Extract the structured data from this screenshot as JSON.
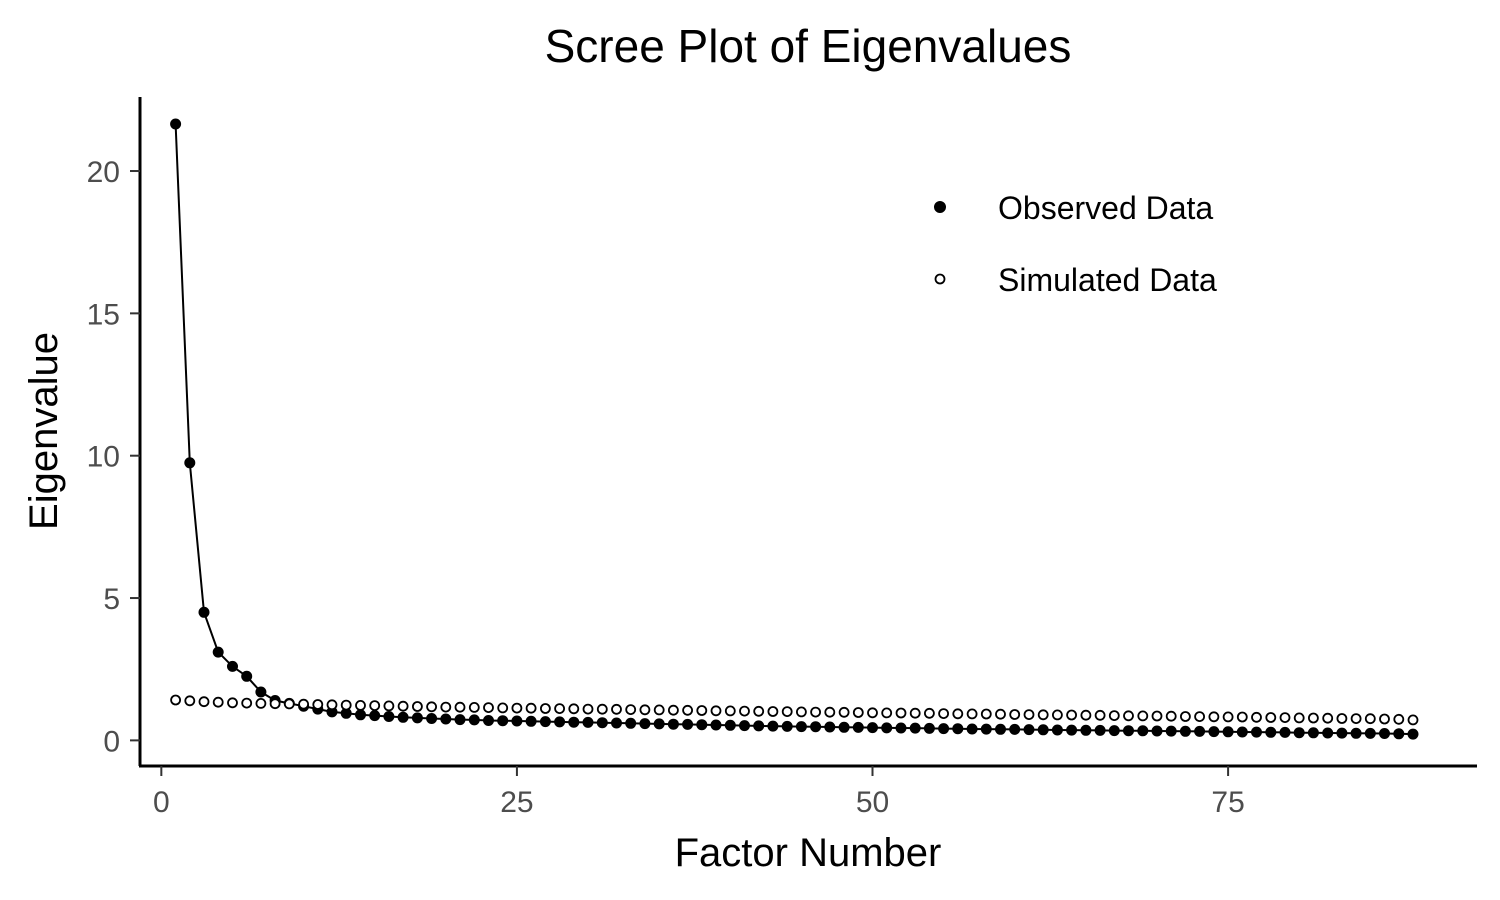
{
  "chart_data": {
    "type": "line",
    "title": "Scree Plot of Eigenvalues",
    "xlabel": "Factor Number",
    "ylabel": "Eigenvalue",
    "xlim": [
      -1.5,
      92.5
    ],
    "ylim": [
      -0.9,
      22.6
    ],
    "x_ticks": [
      0,
      25,
      50,
      75
    ],
    "y_ticks": [
      0,
      5,
      10,
      15,
      20
    ],
    "grid": false,
    "legend_position": "top-right",
    "series": [
      {
        "name": "Observed Data",
        "marker": "filled-circle",
        "line": true,
        "color": "#000000",
        "x": [
          1,
          2,
          3,
          4,
          5,
          6,
          7,
          8,
          9,
          10,
          11,
          12,
          13,
          14,
          15,
          16,
          17,
          18,
          19,
          20,
          21,
          22,
          23,
          24,
          25,
          26,
          27,
          28,
          29,
          30,
          31,
          32,
          33,
          34,
          35,
          36,
          37,
          38,
          39,
          40,
          41,
          42,
          43,
          44,
          45,
          46,
          47,
          48,
          49,
          50,
          51,
          52,
          53,
          54,
          55,
          56,
          57,
          58,
          59,
          60,
          61,
          62,
          63,
          64,
          65,
          66,
          67,
          68,
          69,
          70,
          71,
          72,
          73,
          74,
          75,
          76,
          77,
          78,
          79,
          80,
          81,
          82,
          83,
          84,
          85,
          86,
          87,
          88
        ],
        "values": [
          21.65,
          9.75,
          4.5,
          3.1,
          2.6,
          2.25,
          1.7,
          1.4,
          1.3,
          1.2,
          1.1,
          1.0,
          0.95,
          0.9,
          0.87,
          0.84,
          0.81,
          0.79,
          0.77,
          0.75,
          0.73,
          0.72,
          0.7,
          0.69,
          0.68,
          0.67,
          0.66,
          0.65,
          0.64,
          0.63,
          0.62,
          0.61,
          0.6,
          0.59,
          0.58,
          0.57,
          0.56,
          0.55,
          0.54,
          0.53,
          0.52,
          0.51,
          0.5,
          0.49,
          0.485,
          0.48,
          0.47,
          0.46,
          0.455,
          0.45,
          0.44,
          0.435,
          0.43,
          0.42,
          0.415,
          0.41,
          0.4,
          0.395,
          0.39,
          0.385,
          0.38,
          0.37,
          0.365,
          0.36,
          0.355,
          0.35,
          0.345,
          0.34,
          0.335,
          0.33,
          0.325,
          0.32,
          0.315,
          0.31,
          0.3,
          0.295,
          0.29,
          0.285,
          0.28,
          0.27,
          0.265,
          0.26,
          0.255,
          0.25,
          0.245,
          0.24,
          0.23,
          0.22
        ]
      },
      {
        "name": "Simulated Data",
        "marker": "open-circle",
        "line": false,
        "color": "#000000",
        "x": [
          1,
          2,
          3,
          4,
          5,
          6,
          7,
          8,
          9,
          10,
          11,
          12,
          13,
          14,
          15,
          16,
          17,
          18,
          19,
          20,
          21,
          22,
          23,
          24,
          25,
          26,
          27,
          28,
          29,
          30,
          31,
          32,
          33,
          34,
          35,
          36,
          37,
          38,
          39,
          40,
          41,
          42,
          43,
          44,
          45,
          46,
          47,
          48,
          49,
          50,
          51,
          52,
          53,
          54,
          55,
          56,
          57,
          58,
          59,
          60,
          61,
          62,
          63,
          64,
          65,
          66,
          67,
          68,
          69,
          70,
          71,
          72,
          73,
          74,
          75,
          76,
          77,
          78,
          79,
          80,
          81,
          82,
          83,
          84,
          85,
          86,
          87,
          88
        ],
        "values": [
          1.42,
          1.39,
          1.36,
          1.34,
          1.32,
          1.31,
          1.3,
          1.29,
          1.28,
          1.27,
          1.26,
          1.25,
          1.24,
          1.23,
          1.22,
          1.21,
          1.2,
          1.19,
          1.18,
          1.17,
          1.165,
          1.16,
          1.15,
          1.14,
          1.135,
          1.13,
          1.12,
          1.115,
          1.11,
          1.1,
          1.095,
          1.09,
          1.08,
          1.075,
          1.07,
          1.06,
          1.055,
          1.05,
          1.04,
          1.035,
          1.03,
          1.02,
          1.015,
          1.01,
          1.0,
          0.995,
          0.99,
          0.985,
          0.98,
          0.97,
          0.965,
          0.96,
          0.955,
          0.95,
          0.94,
          0.935,
          0.93,
          0.925,
          0.92,
          0.91,
          0.905,
          0.9,
          0.895,
          0.89,
          0.885,
          0.88,
          0.87,
          0.865,
          0.86,
          0.855,
          0.85,
          0.84,
          0.835,
          0.83,
          0.825,
          0.82,
          0.81,
          0.805,
          0.8,
          0.79,
          0.785,
          0.78,
          0.77,
          0.765,
          0.76,
          0.75,
          0.74,
          0.72
        ]
      }
    ]
  }
}
